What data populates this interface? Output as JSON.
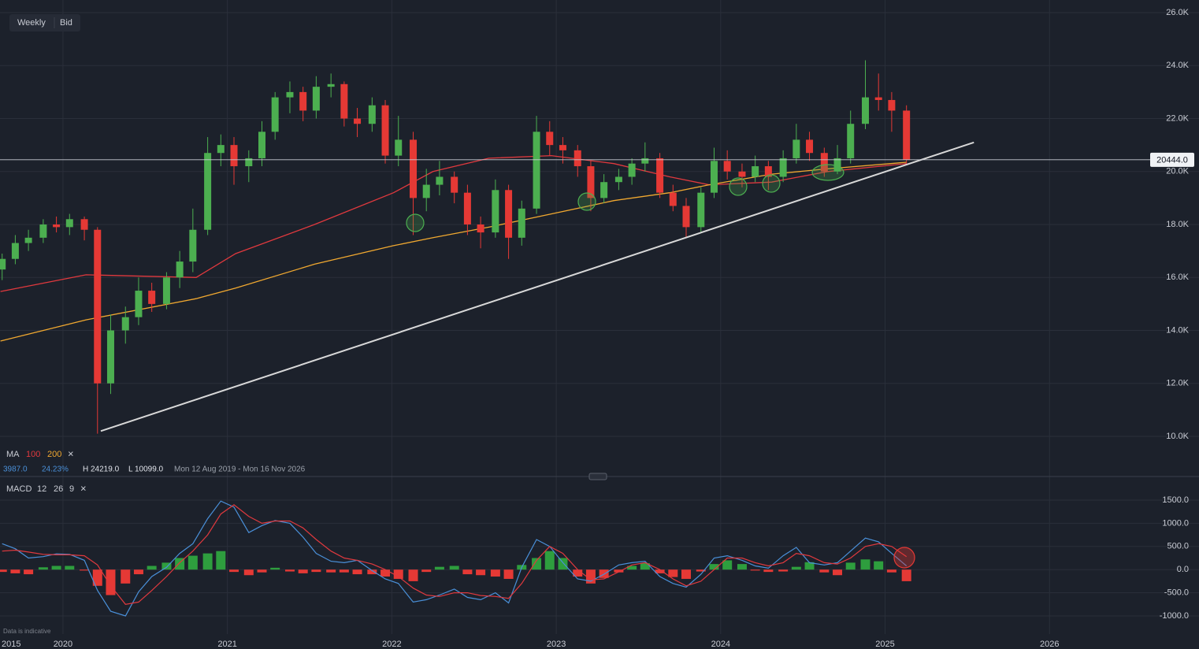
{
  "toolbar": {
    "interval": "Weekly",
    "price_type": "Bid"
  },
  "legend": {
    "ma_label": "MA",
    "close": "×",
    "stats": [
      "3987.0",
      "24.23%",
      "H 24219.0",
      "L 10099.0"
    ],
    "range": "Mon 12 Aug 2019 - Mon 16 Nov 2026"
  },
  "macd_legend": {
    "label": "MACD",
    "params": [
      12,
      26,
      9
    ],
    "close": "×"
  },
  "footnote": "Data is indicative",
  "axis_left_label": "2015",
  "chart_data": [
    {
      "type": "candlestick",
      "up_color": "#4caf50",
      "down_color": "#e53935",
      "x": [
        2019.63,
        2019.71,
        2019.79,
        2019.88,
        2019.96,
        2020.04,
        2020.13,
        2020.21,
        2020.29,
        2020.38,
        2020.46,
        2020.54,
        2020.63,
        2020.71,
        2020.79,
        2020.88,
        2020.96,
        2021.04,
        2021.13,
        2021.21,
        2021.29,
        2021.38,
        2021.46,
        2021.54,
        2021.63,
        2021.71,
        2021.79,
        2021.88,
        2021.96,
        2022.04,
        2022.13,
        2022.21,
        2022.29,
        2022.38,
        2022.46,
        2022.54,
        2022.63,
        2022.71,
        2022.79,
        2022.88,
        2022.96,
        2023.04,
        2023.13,
        2023.21,
        2023.29,
        2023.38,
        2023.46,
        2023.54,
        2023.63,
        2023.71,
        2023.79,
        2023.88,
        2023.96,
        2024.04,
        2024.13,
        2024.21,
        2024.29,
        2024.38,
        2024.46,
        2024.54,
        2024.63,
        2024.71,
        2024.79,
        2024.88,
        2024.96,
        2025.04,
        2025.13
      ],
      "open": [
        16300,
        16700,
        17300,
        17500,
        18000,
        17900,
        18200,
        17800,
        12000,
        14000,
        14500,
        15500,
        15000,
        16000,
        16600,
        17800,
        20700,
        21000,
        20200,
        20500,
        21500,
        22800,
        23000,
        22300,
        23200,
        23300,
        22000,
        21800,
        22500,
        20600,
        21200,
        19000,
        19500,
        19800,
        19200,
        18000,
        17700,
        19300,
        17500,
        18600,
        21500,
        21000,
        20800,
        20200,
        19000,
        19600,
        19800,
        20300,
        20500,
        19200,
        18700,
        17900,
        19200,
        20400,
        20000,
        19800,
        20200,
        19800,
        20500,
        21200,
        20700,
        20000,
        20500,
        21800,
        22800,
        22700,
        22300
      ],
      "high": [
        16900,
        17600,
        17800,
        18200,
        18300,
        18400,
        18300,
        17900,
        14600,
        14900,
        16000,
        15800,
        16200,
        17000,
        18600,
        21300,
        21400,
        21300,
        20800,
        21900,
        23000,
        23400,
        23200,
        23600,
        23700,
        23400,
        22400,
        22800,
        22700,
        22100,
        21500,
        20100,
        20400,
        20000,
        19500,
        18300,
        19700,
        19500,
        18900,
        22100,
        21900,
        21300,
        21000,
        20400,
        19900,
        20100,
        20500,
        21100,
        20700,
        19500,
        19000,
        19400,
        20900,
        20800,
        20300,
        20600,
        20400,
        20800,
        21800,
        21500,
        20900,
        21000,
        22300,
        24200,
        23700,
        23000,
        22500
      ],
      "low": [
        15900,
        16500,
        17000,
        17300,
        17700,
        17600,
        17400,
        10100,
        11600,
        13500,
        14200,
        14700,
        14800,
        15600,
        16200,
        17600,
        20200,
        19500,
        19600,
        20200,
        21200,
        22200,
        21900,
        22000,
        22800,
        21700,
        21300,
        21500,
        20300,
        20200,
        17600,
        18500,
        19100,
        18800,
        17600,
        17100,
        17500,
        16700,
        17200,
        18400,
        20600,
        20300,
        19800,
        18500,
        18800,
        19300,
        19500,
        20000,
        19000,
        18500,
        17500,
        17700,
        19000,
        19700,
        19400,
        19600,
        19300,
        19600,
        20300,
        20400,
        19800,
        19900,
        20300,
        21600,
        22300,
        21500,
        20300
      ],
      "close": [
        16700,
        17300,
        17500,
        18000,
        17900,
        18200,
        17800,
        12000,
        14000,
        14500,
        15500,
        15000,
        16000,
        16600,
        17800,
        20700,
        21000,
        20200,
        20500,
        21500,
        22800,
        23000,
        22300,
        23200,
        23300,
        22000,
        21800,
        22500,
        20600,
        21200,
        19000,
        19500,
        19800,
        19200,
        18000,
        17700,
        19300,
        17500,
        18600,
        21500,
        21000,
        20800,
        20200,
        19000,
        19600,
        19800,
        20300,
        20500,
        19200,
        18700,
        17900,
        19200,
        20400,
        20000,
        19800,
        20200,
        19800,
        20500,
        21200,
        20700,
        20000,
        20500,
        21800,
        22800,
        22700,
        22300,
        20444
      ],
      "series": [
        {
          "name": "100",
          "color": "#e0393e",
          "x": [
            2019.62,
            2020.14,
            2020.81,
            2021.05,
            2021.53,
            2022.01,
            2022.25,
            2022.59,
            2022.97,
            2023.35,
            2023.69,
            2023.93,
            2024.31,
            2024.65,
            2025.13
          ],
          "values": [
            15470,
            16100,
            16000,
            16900,
            18000,
            19200,
            20000,
            20500,
            20600,
            20300,
            19800,
            19500,
            19600,
            20000,
            20300
          ]
        },
        {
          "name": "200",
          "color": "#f0a830",
          "x": [
            2019.62,
            2020.14,
            2020.81,
            2021.05,
            2021.53,
            2022.01,
            2022.25,
            2022.59,
            2022.97,
            2023.35,
            2023.69,
            2023.93,
            2024.31,
            2024.65,
            2025.13
          ],
          "values": [
            13600,
            14400,
            15200,
            15600,
            16500,
            17200,
            17500,
            17900,
            18400,
            18900,
            19200,
            19500,
            19900,
            20100,
            20350
          ]
        }
      ],
      "trendline": {
        "x": [
          2020.23,
          2025.54
        ],
        "values": [
          10200,
          21100
        ],
        "color": "#d8d8d8"
      },
      "last_price": {
        "value": 20444,
        "label": "20444.0"
      },
      "xlim": [
        2019.617,
        2026.909
      ],
      "xticks": [
        2020,
        2021,
        2022,
        2023,
        2024,
        2025,
        2026
      ],
      "ylim": [
        8513,
        26476
      ],
      "yticks": [
        {
          "value": 10000,
          "label": "10.0K"
        },
        {
          "value": 12000,
          "label": "12.0K"
        },
        {
          "value": 14000,
          "label": "14.0K"
        },
        {
          "value": 16000,
          "label": "16.0K"
        },
        {
          "value": 18000,
          "label": "18.0K"
        },
        {
          "value": 20000,
          "label": "20.0K"
        },
        {
          "value": 22000,
          "label": "22.0K"
        },
        {
          "value": 24000,
          "label": "24.0K"
        },
        {
          "value": 26000,
          "label": "26.0K"
        }
      ],
      "grid": true
    },
    {
      "type": "macd",
      "x": [
        2019.63,
        2019.71,
        2019.79,
        2019.88,
        2019.96,
        2020.04,
        2020.13,
        2020.21,
        2020.29,
        2020.38,
        2020.46,
        2020.54,
        2020.63,
        2020.71,
        2020.79,
        2020.88,
        2020.96,
        2021.04,
        2021.13,
        2021.21,
        2021.29,
        2021.38,
        2021.46,
        2021.54,
        2021.63,
        2021.71,
        2021.79,
        2021.88,
        2021.96,
        2022.04,
        2022.13,
        2022.21,
        2022.29,
        2022.38,
        2022.46,
        2022.54,
        2022.63,
        2022.71,
        2022.79,
        2022.88,
        2022.96,
        2023.04,
        2023.13,
        2023.21,
        2023.29,
        2023.38,
        2023.46,
        2023.54,
        2023.63,
        2023.71,
        2023.79,
        2023.88,
        2023.96,
        2024.04,
        2024.13,
        2024.21,
        2024.29,
        2024.38,
        2024.46,
        2024.54,
        2024.63,
        2024.71,
        2024.79,
        2024.88,
        2024.96,
        2025.04,
        2025.13
      ],
      "lines": [
        {
          "color": "#4a90d9",
          "values": [
            560,
            450,
            250,
            280,
            340,
            330,
            200,
            -450,
            -900,
            -1000,
            -480,
            -150,
            50,
            350,
            560,
            1100,
            1480,
            1350,
            800,
            950,
            1060,
            1000,
            700,
            350,
            180,
            150,
            200,
            -20,
            -200,
            -300,
            -700,
            -650,
            -550,
            -420,
            -600,
            -650,
            -500,
            -720,
            50,
            650,
            500,
            150,
            -200,
            -250,
            -100,
            100,
            150,
            180,
            -150,
            -300,
            -380,
            -100,
            250,
            300,
            200,
            80,
            30,
            300,
            480,
            150,
            100,
            150,
            400,
            680,
            600,
            350,
            80
          ]
        },
        {
          "color": "#e0393e",
          "values": [
            400,
            420,
            380,
            330,
            320,
            320,
            300,
            100,
            -350,
            -750,
            -700,
            -450,
            -150,
            150,
            400,
            750,
            1200,
            1400,
            1150,
            1000,
            1050,
            1050,
            900,
            650,
            400,
            250,
            200,
            120,
            0,
            -150,
            -400,
            -550,
            -580,
            -500,
            -500,
            -560,
            -580,
            -620,
            -300,
            200,
            500,
            350,
            0,
            -220,
            -200,
            -50,
            100,
            150,
            0,
            -200,
            -350,
            -250,
            0,
            250,
            250,
            150,
            80,
            150,
            350,
            300,
            150,
            120,
            250,
            500,
            560,
            500,
            280
          ]
        }
      ],
      "histogram": {
        "up_color": "#2e9e3e",
        "down_color": "#e53935",
        "values": [
          -50,
          -80,
          -100,
          50,
          80,
          80,
          -20,
          -350,
          -550,
          -300,
          -100,
          80,
          150,
          250,
          300,
          350,
          400,
          -50,
          -120,
          -60,
          40,
          -40,
          -80,
          -50,
          -60,
          -60,
          -100,
          -100,
          -150,
          -200,
          -250,
          -50,
          60,
          80,
          -100,
          -120,
          -150,
          -200,
          100,
          250,
          400,
          250,
          -150,
          -300,
          -180,
          -60,
          80,
          140,
          -80,
          -160,
          -200,
          -40,
          120,
          200,
          120,
          -20,
          -50,
          -40,
          60,
          160,
          -60,
          -120,
          150,
          220,
          180,
          -60,
          -250
        ]
      },
      "xlim": [
        2019.617,
        2026.909
      ],
      "ylim": [
        -1391,
        1976
      ],
      "yticks": [
        {
          "value": -1000,
          "label": "-1000.0"
        },
        {
          "value": -500,
          "label": "-500.0"
        },
        {
          "value": 0,
          "label": "0.0"
        },
        {
          "value": 500,
          "label": "500.0"
        },
        {
          "value": 1000,
          "label": "1000.0"
        },
        {
          "value": 1500,
          "label": "1500.0"
        }
      ],
      "grid": true
    }
  ]
}
